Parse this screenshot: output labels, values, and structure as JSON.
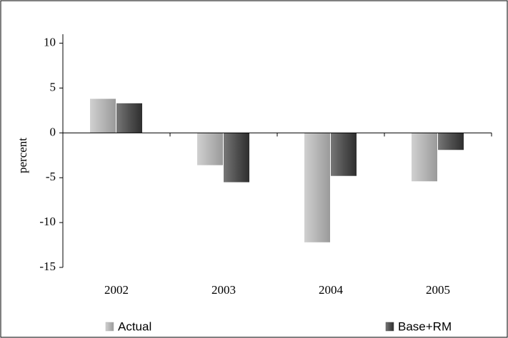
{
  "chart_data": {
    "type": "bar",
    "y_label": "percent",
    "categories": [
      "2002",
      "2003",
      "2004",
      "2005"
    ],
    "series": [
      {
        "name": "Actual",
        "color": "#b5b5b5",
        "values": [
          3.8,
          -3.6,
          -12.2,
          -5.4
        ]
      },
      {
        "name": "Base+RM",
        "color": "#505050",
        "values": [
          3.3,
          -5.5,
          -4.8,
          -1.9
        ]
      }
    ],
    "ylim": [
      -15,
      11
    ],
    "yticks": [
      -15,
      -10,
      -5,
      0,
      5,
      10
    ],
    "grid": false
  }
}
